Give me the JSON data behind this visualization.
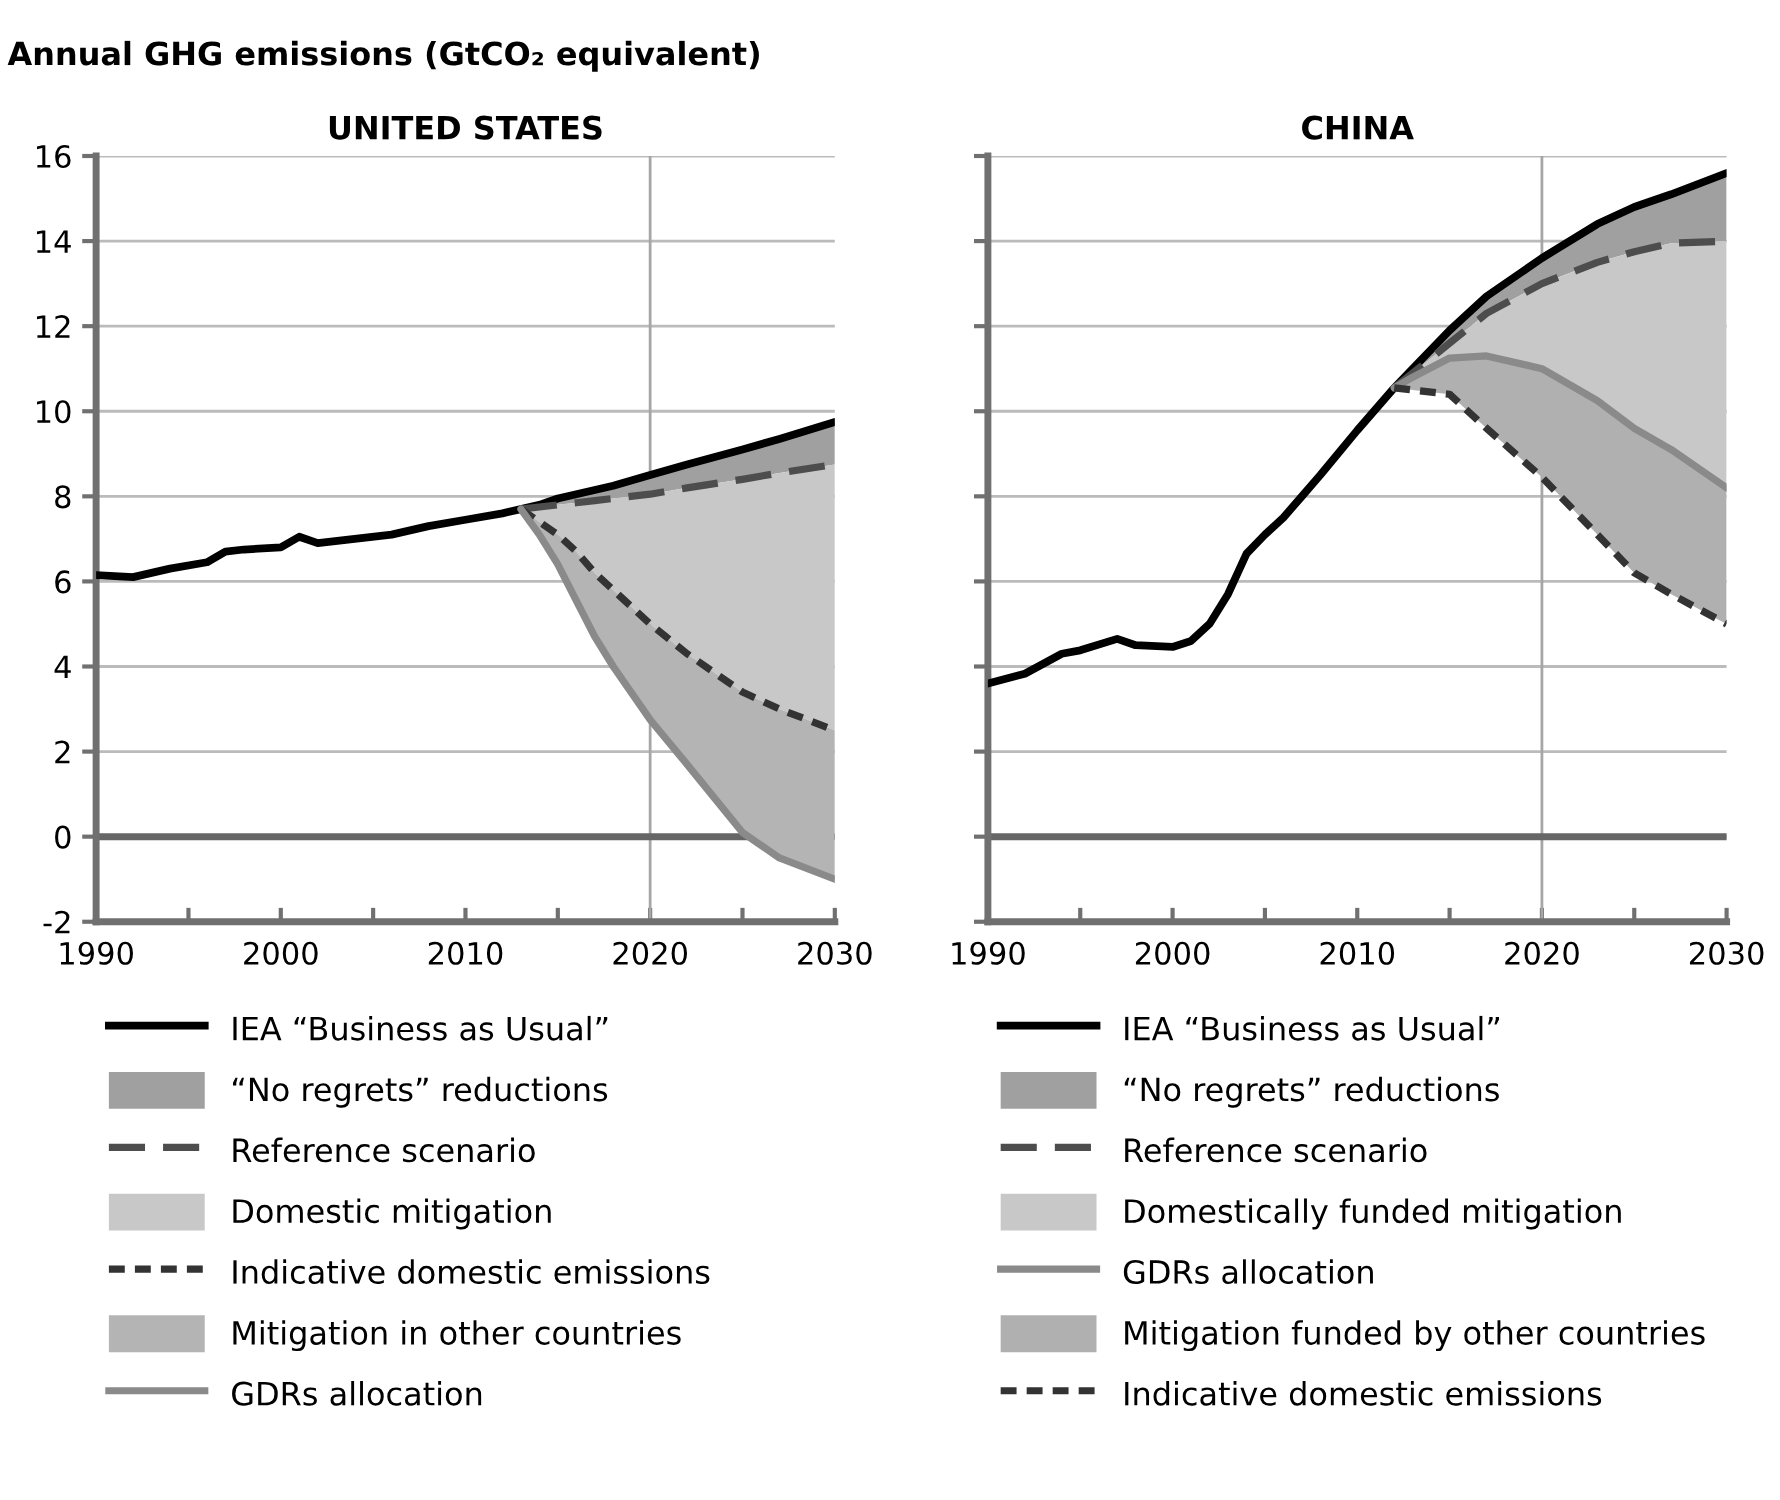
{
  "chart_data": [
    {
      "type": "line",
      "title": "UNITED STATES",
      "ylabel": "Annual GHG emissions (GtCO₂ equivalent)",
      "xlim": [
        1990,
        2030
      ],
      "ylim": [
        -2,
        16
      ],
      "xticks": [
        1990,
        {
          "value": 1995,
          "label": null
        },
        2000,
        {
          "value": 2005,
          "label": null
        },
        2010,
        {
          "value": 2015,
          "label": null
        },
        2020,
        {
          "value": 2025,
          "label": null
        },
        2030
      ],
      "yticks": [
        -2,
        0,
        2,
        4,
        6,
        8,
        10,
        12,
        14,
        16
      ],
      "grid": "y",
      "legend": "bottom",
      "ref_lines": [
        {
          "axis": "x",
          "value": 2020,
          "label": null,
          "color": "#a6a6a6"
        },
        {
          "axis": "y",
          "value": 0,
          "label": null,
          "color": "#666666"
        }
      ],
      "series": [
        {
          "name": "IEA “Business as Usual”",
          "color": "#000000",
          "line_style": "solid",
          "x": [
            1990,
            1992,
            1994,
            1996,
            1997,
            1998,
            2000,
            2001,
            2002,
            2004,
            2006,
            2008,
            2010,
            2012,
            2013,
            2014,
            2015,
            2016,
            2017,
            2018,
            2020,
            2022,
            2025,
            2027,
            2030
          ],
          "values": [
            6.15,
            6.1,
            6.3,
            6.45,
            6.7,
            6.75,
            6.8,
            7.05,
            6.9,
            7.0,
            7.1,
            7.3,
            7.45,
            7.6,
            7.7,
            7.8,
            7.95,
            8.05,
            8.15,
            8.25,
            8.5,
            8.75,
            9.1,
            9.35,
            9.75
          ]
        },
        {
          "name": "“No regrets” reductions",
          "type": "area",
          "color": "#a0a0a0",
          "x": [
            2013,
            2014,
            2015,
            2016,
            2017,
            2018,
            2020,
            2022,
            2025,
            2027,
            2030
          ],
          "values": [
            null,
            null,
            null,
            null,
            null,
            null,
            null,
            null,
            null,
            null,
            null
          ],
          "upper": [
            7.7,
            7.8,
            7.95,
            8.05,
            8.15,
            8.25,
            8.5,
            8.75,
            9.1,
            9.35,
            9.75
          ],
          "lower": [
            7.7,
            7.75,
            7.8,
            7.85,
            7.9,
            7.95,
            8.05,
            8.2,
            8.4,
            8.55,
            8.75
          ]
        },
        {
          "name": "Reference scenario",
          "color": "#4d4d4d",
          "line_style": "dashed",
          "x": [
            2013,
            2014,
            2015,
            2016,
            2017,
            2018,
            2020,
            2022,
            2025,
            2027,
            2030
          ],
          "values": [
            7.7,
            7.75,
            7.8,
            7.85,
            7.9,
            7.95,
            8.05,
            8.2,
            8.4,
            8.55,
            8.75
          ]
        },
        {
          "name": "Domestic mitigation",
          "type": "area",
          "color": "#c8c8c8",
          "x": [
            2013,
            2014,
            2015,
            2016,
            2017,
            2018,
            2020,
            2022,
            2025,
            2027,
            2030
          ],
          "values": [
            null,
            null,
            null,
            null,
            null,
            null,
            null,
            null,
            null,
            null,
            null
          ],
          "upper": [
            7.7,
            7.75,
            7.8,
            7.85,
            7.9,
            7.95,
            8.05,
            8.2,
            8.4,
            8.55,
            8.75
          ],
          "lower": [
            7.7,
            7.4,
            7.1,
            6.7,
            6.2,
            5.8,
            5.0,
            4.3,
            3.4,
            3.0,
            2.5
          ]
        },
        {
          "name": "Indicative domestic emissions",
          "color": "#333333",
          "line_style": "dotted",
          "x": [
            2013,
            2014,
            2015,
            2016,
            2017,
            2018,
            2020,
            2022,
            2025,
            2027,
            2030
          ],
          "values": [
            7.7,
            7.4,
            7.1,
            6.7,
            6.2,
            5.8,
            5.0,
            4.3,
            3.4,
            3.0,
            2.5
          ]
        },
        {
          "name": "Mitigation in other countries",
          "type": "area",
          "color": "#b4b4b4",
          "x": [
            2013,
            2014,
            2015,
            2016,
            2017,
            2018,
            2020,
            2022,
            2025,
            2027,
            2030
          ],
          "values": [
            null,
            null,
            null,
            null,
            null,
            null,
            null,
            null,
            null,
            null,
            null
          ],
          "upper": [
            7.7,
            7.4,
            7.1,
            6.7,
            6.2,
            5.8,
            5.0,
            4.3,
            3.4,
            3.0,
            2.5
          ],
          "lower": [
            7.7,
            7.1,
            6.4,
            5.55,
            4.7,
            4.0,
            2.75,
            1.7,
            0.1,
            -0.5,
            -1.0
          ]
        },
        {
          "name": "GDRs allocation",
          "color": "#8a8a8a",
          "line_style": "solid",
          "x": [
            2013,
            2014,
            2015,
            2016,
            2017,
            2018,
            2020,
            2022,
            2025,
            2027,
            2030
          ],
          "values": [
            7.7,
            7.1,
            6.4,
            5.55,
            4.7,
            4.0,
            2.75,
            1.7,
            0.1,
            -0.5,
            -1.0
          ]
        }
      ]
    },
    {
      "type": "line",
      "title": "CHINA",
      "xlim": [
        1990,
        2030
      ],
      "ylim": [
        -2,
        16
      ],
      "tick_labels": "x",
      "xticks": [
        1990,
        {
          "value": 1995,
          "label": null
        },
        2000,
        {
          "value": 2005,
          "label": null
        },
        2010,
        {
          "value": 2015,
          "label": null
        },
        2020,
        {
          "value": 2025,
          "label": null
        },
        2030
      ],
      "yticks": [
        {
          "value": -2,
          "label": null
        },
        {
          "value": 0,
          "label": null
        },
        {
          "value": 2,
          "label": null
        },
        {
          "value": 4,
          "label": null
        },
        {
          "value": 6,
          "label": null
        },
        {
          "value": 8,
          "label": null
        },
        {
          "value": 10,
          "label": null
        },
        {
          "value": 12,
          "label": null
        },
        {
          "value": 14,
          "label": null
        },
        {
          "value": 16,
          "label": null
        }
      ],
      "grid": "y",
      "legend": "bottom",
      "ref_lines": [
        {
          "axis": "x",
          "value": 2020,
          "label": null,
          "color": "#a6a6a6"
        },
        {
          "axis": "y",
          "value": 0,
          "label": null,
          "color": "#666666"
        }
      ],
      "series": [
        {
          "name": "IEA “Business as Usual”",
          "color": "#000000",
          "line_style": "solid",
          "x": [
            1990,
            1992,
            1994,
            1995,
            1997,
            1998,
            2000,
            2001,
            2002,
            2003,
            2004,
            2005,
            2006,
            2007,
            2008,
            2010,
            2012,
            2013,
            2015,
            2017,
            2020,
            2023,
            2025,
            2027,
            2030
          ],
          "values": [
            3.6,
            3.83,
            4.3,
            4.38,
            4.65,
            4.5,
            4.46,
            4.6,
            5.0,
            5.7,
            6.65,
            7.1,
            7.5,
            8.0,
            8.5,
            9.55,
            10.55,
            11.0,
            11.9,
            12.7,
            13.6,
            14.4,
            14.8,
            15.1,
            15.6
          ]
        },
        {
          "name": "“No regrets” reductions",
          "type": "area",
          "color": "#a0a0a0",
          "x": [
            2012,
            2013,
            2015,
            2017,
            2020,
            2023,
            2025,
            2027,
            2030
          ],
          "values": [
            null,
            null,
            null,
            null,
            null,
            null,
            null,
            null,
            null
          ],
          "upper": [
            10.55,
            11.0,
            11.9,
            12.7,
            13.6,
            14.4,
            14.8,
            15.1,
            15.6
          ],
          "lower": [
            10.55,
            10.9,
            11.6,
            12.3,
            13.0,
            13.5,
            13.75,
            13.95,
            14.0
          ]
        },
        {
          "name": "Reference scenario",
          "color": "#4d4d4d",
          "line_style": "dashed",
          "x": [
            2012,
            2013,
            2015,
            2017,
            2020,
            2023,
            2025,
            2027,
            2030
          ],
          "values": [
            10.55,
            10.9,
            11.6,
            12.3,
            13.0,
            13.5,
            13.75,
            13.95,
            14.0
          ]
        },
        {
          "name": "Domestically funded mitigation",
          "type": "area",
          "color": "#c8c8c8",
          "x": [
            2012,
            2013,
            2015,
            2017,
            2020,
            2023,
            2025,
            2027,
            2030
          ],
          "values": [
            null,
            null,
            null,
            null,
            null,
            null,
            null,
            null,
            null
          ],
          "upper": [
            10.55,
            10.9,
            11.6,
            12.3,
            13.0,
            13.5,
            13.75,
            13.95,
            14.0
          ],
          "lower": [
            10.55,
            10.8,
            11.25,
            11.3,
            11.0,
            10.25,
            9.6,
            9.1,
            8.2
          ]
        },
        {
          "name": "GDRs allocation",
          "color": "#8a8a8a",
          "line_style": "solid",
          "x": [
            2012,
            2013,
            2015,
            2017,
            2020,
            2023,
            2025,
            2027,
            2030
          ],
          "values": [
            10.55,
            10.8,
            11.25,
            11.3,
            11.0,
            10.25,
            9.6,
            9.1,
            8.2
          ]
        },
        {
          "name": "Mitigation funded by other countries",
          "type": "area",
          "color": "#b0b0b0",
          "x": [
            2012,
            2013,
            2015,
            2017,
            2020,
            2023,
            2025,
            2027,
            2030
          ],
          "values": [
            null,
            null,
            null,
            null,
            null,
            null,
            null,
            null,
            null
          ],
          "upper": [
            10.55,
            10.8,
            11.25,
            11.3,
            11.0,
            10.25,
            9.6,
            9.1,
            8.2
          ],
          "lower": [
            10.55,
            10.5,
            10.4,
            9.6,
            8.45,
            7.1,
            6.2,
            5.7,
            5.0
          ]
        },
        {
          "name": "Indicative domestic emissions",
          "color": "#333333",
          "line_style": "dotted",
          "x": [
            2012,
            2013,
            2015,
            2017,
            2020,
            2023,
            2025,
            2027,
            2030
          ],
          "values": [
            10.55,
            10.5,
            10.4,
            9.6,
            8.45,
            7.1,
            6.2,
            5.7,
            5.0
          ]
        }
      ]
    }
  ]
}
